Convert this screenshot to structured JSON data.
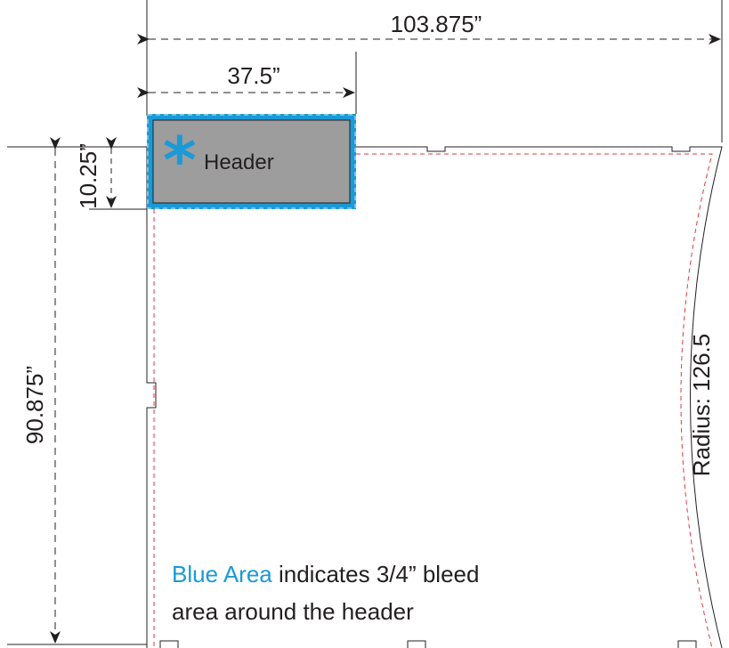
{
  "dimensions": {
    "total_width": "103.875”",
    "header_width": "37.5”",
    "header_height": "10.25”",
    "total_height": "90.875”",
    "radius": "Radius: 126.5"
  },
  "header": {
    "label": "Header",
    "star_glyph": "*"
  },
  "note": {
    "highlight": "Blue Area",
    "line1_rest": " indicates 3/4” bleed",
    "line2": "area around the header"
  },
  "colors": {
    "bleed_blue": "#1a9ad6",
    "header_fill": "#9d9d9e",
    "cut_red": "#e03a3e",
    "line": "#231f20",
    "note_blue": "#1a9ad6"
  }
}
